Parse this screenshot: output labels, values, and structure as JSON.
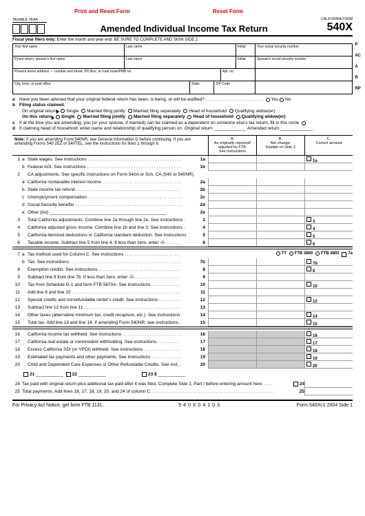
{
  "topLinks": {
    "print": "Print and Reset Form",
    "reset": "Reset Form"
  },
  "header": {
    "taxableYear": "TAXABLE YEAR",
    "title": "Amended Individual Income Tax Return",
    "formLabel": "CALIFORNIA FORM",
    "formNum": "540X"
  },
  "fiscal": {
    "bold": "Fiscal year filers only:",
    "rest": "Enter the month and year end: BE SURE TO COMPLETE AND SIGN SIDE 2"
  },
  "info": {
    "r1c1": "Your first name",
    "r1c2": "Last name",
    "r1c3": "Initial",
    "r1c4": "Your social security number",
    "r2c1": "If joint return, spouse's first name",
    "r2c2": "Last name",
    "r2c3": "Initial",
    "r2c4": "Spouse's social security number",
    "r3c1": "Present home address — number and street, PO Box, or rural route/PMB no.",
    "r3c2": "Apt. no.",
    "r4c1": "City, town, or post office",
    "r4c2": "State",
    "r4c3": "ZIP Code"
  },
  "sideLetters": [
    "P",
    "AC",
    "A",
    "R",
    "RP"
  ],
  "sectionA": {
    "a": "Have you been advised that your original federal return has been, is being, or will be audited? . . . . . . . . . . . . . . . . . . . . . . . . ",
    "yes": "Yes",
    "no": "No",
    "bLabel": "Filing status claimed.",
    "orig": "On original return",
    "opts": [
      "Single",
      "Married filing jointly",
      "Married filing separately",
      "Head of household",
      "Qualifying widow(er)"
    ],
    "thisReturn": "On this return",
    "c": "If at the time you are amending, you (or your spouse, if married) can be claimed as a dependent on someone else's tax return, fill in this circle",
    "d": "If claiming head of household, enter name and relationship of qualifying person on: Original return _____________ Amended return _____________"
  },
  "note": {
    "label": "Note:",
    "text": "If you are amending Form 540NR, see General Information D before continuing. If you are amending Forms 540 2EZ or 540TEL, see the instructions for lines 1 through 6.",
    "colA": "A.\nAs originally reported/\nadjusted by FTB.\nSee instructions",
    "colB": "B.\nNet change.\nExplain on Side 2",
    "colC": "C.\nCorrect amount"
  },
  "lines1": [
    {
      "n": "1",
      "s": "a",
      "t": "State wages. See instructions . . . . . . . . . . . . . . . . . . . . . . . . . . . . . . . . . . . . . .",
      "r": "1a",
      "sq": true
    },
    {
      "n": "",
      "s": "b",
      "t": "Federal AGI. See instructions . . . . . . . . . . . . . . . . . . . . . . . . . . . . . . . . . . . . . .",
      "r": "1b",
      "sq": false
    },
    {
      "n": "2",
      "s": "",
      "t": "CA adjustments. See specific instructions on Form 540A or Sch. CA (540 or 540NR).",
      "r": "",
      "hdr": true
    },
    {
      "n": "",
      "s": "a",
      "t": "California nontaxable interest income . . . . . . . . . . . . . . . . . . . . . . . . . . . . . . . .",
      "r": "2a",
      "sq": false
    },
    {
      "n": "",
      "s": "b",
      "t": "State income tax refund . . . . . . . . . . . . . . . . . . . . . . . . . . . . . . . . . . . . . . . . . .",
      "r": "2b",
      "sq": false
    },
    {
      "n": "",
      "s": "c",
      "t": "Unemployment compensation . . . . . . . . . . . . . . . . . . . . . . . . . . . . . . . . . . . . . .",
      "r": "2c",
      "sq": false
    },
    {
      "n": "",
      "s": "d",
      "t": "Social Security benefits . . . . . . . . . . . . . . . . . . . . . . . . . . . . . . . . . . . . . . . . . . .",
      "r": "2d",
      "sq": false
    },
    {
      "n": "",
      "s": "e",
      "t": "Other (list) _______________________________________________",
      "r": "2e",
      "sq": false
    },
    {
      "n": "3",
      "s": "",
      "t": "Total California adjustments. Combine line 2a through line 2e. See instructions .",
      "r": "3",
      "sq": true
    },
    {
      "n": "4",
      "s": "",
      "t": "California adjusted gross income. Combine line 1b and line 3. See instructions .",
      "r": "4",
      "sq": true
    },
    {
      "n": "5",
      "s": "",
      "t": "California itemized deductions or California standard deduction. See instructions",
      "r": "5",
      "sq": true
    },
    {
      "n": "6",
      "s": "",
      "t": "Taxable income. Subtract line 5 from line 4. If less than zero, enter -0- . . . . . .",
      "r": "6",
      "sq": true,
      "u": true
    }
  ],
  "line7": {
    "n": "7",
    "s": "a",
    "t": "Tax method used for Column C. See instructions . . . . . . . . . . . . . . . . . . . . . .",
    "opts": [
      "TT",
      "FTB 3800",
      "FTB 3803",
      "7a"
    ]
  },
  "lines2": [
    {
      "n": "",
      "s": "b",
      "t": "Tax. See instructions . . . . . . . . . . . . . . . . . . . . . . . . . . . . . . . . . . . . . . . . . . . . .",
      "r": "7b",
      "sq": true
    },
    {
      "n": "8",
      "s": "",
      "t": "Exemption credits. See instructions . . . . . . . . . . . . . . . . . . . . . . . . . . . . . . . . .",
      "r": "8",
      "sq": true
    },
    {
      "n": "9",
      "s": "",
      "t": "Subtract line 8 from line 7b. If less than zero, enter -0- . . . . . . . . . . . . . . . . . .",
      "r": "9",
      "sq": false
    },
    {
      "n": "10",
      "s": "",
      "t": "Tax from Schedule G-1 and form FTB 5870A. See instructions . . . . . . . . . . . .",
      "r": "10",
      "sq": true
    },
    {
      "n": "11",
      "s": "",
      "t": "Add line 9 and line 10 . . . . . . . . . . . . . . . . . . . . . . . . . . . . . . . . . . . . . . . . . . . .",
      "r": "11",
      "sq": false
    },
    {
      "n": "12",
      "s": "",
      "t": "Special credits and nonrefundable renter's credit. See instructions . . . . . . . . .",
      "r": "12",
      "sq": true
    },
    {
      "n": "13",
      "s": "",
      "t": "Subtract line 12 from line 11 . . . . . . . . . . . . . . . . . . . . . . . . . . . . . . . . . . . . . . .",
      "r": "13",
      "sq": false
    },
    {
      "n": "14",
      "s": "",
      "t": "Other taxes (alternative minimum tax, credit recapture, etc.). See instructions .",
      "r": "14",
      "sq": true
    },
    {
      "n": "15",
      "s": "",
      "t": "Total tax. Add line 13 and line 14. If amending Form 540NR, see instructions .",
      "r": "15",
      "sq": true,
      "u": true
    }
  ],
  "lines3": [
    {
      "n": "16",
      "s": "",
      "t": "California income tax withheld. See instructions . . . . . . . . . . . . . . . . . . . . . . . .",
      "r": "16",
      "sq": true
    },
    {
      "n": "17",
      "s": "",
      "t": "California real estate or nonresident withholding. See instructions . . . . . . . . .",
      "r": "17",
      "sq": true
    },
    {
      "n": "18",
      "s": "",
      "t": "Excess California SDI (or VPDI) withheld. See instructions . . . . . . . . . . . . . . .",
      "r": "18",
      "sq": true
    },
    {
      "n": "19",
      "s": "",
      "t": "Estimated tax payments and other payments. See instructions . . . . . . . . . . . .",
      "r": "19",
      "sq": true
    },
    {
      "n": "20",
      "s": "",
      "t": "Child and Dependent Care Expenses or Other Refundable Credits. See inst. .",
      "r": "20",
      "sq": true
    }
  ],
  "line21": {
    "sq": [
      "21",
      "22"
    ],
    "amt": "23 $"
  },
  "lines4": [
    {
      "n": "24",
      "t": "Tax paid with original return plus additional tax paid after it was filed. Complete Side 2, Part I before entering amount here . . . .",
      "r": "24",
      "sq": true
    },
    {
      "n": "25",
      "t": "Total payments. Add lines 16, 17, 18, 19, 20, and 24 of column C . . . . . . . . . . . . . . . . . . . . . . . . . . . . . . . . . . . . . . . . . . . . . . . . . .",
      "r": "25",
      "sq": false
    }
  ],
  "footer": {
    "left": "For Privacy Act Notice, get form FTB 1131.",
    "mid": "540X04103",
    "right": "Form 540Xc1 2004  Side 1"
  }
}
